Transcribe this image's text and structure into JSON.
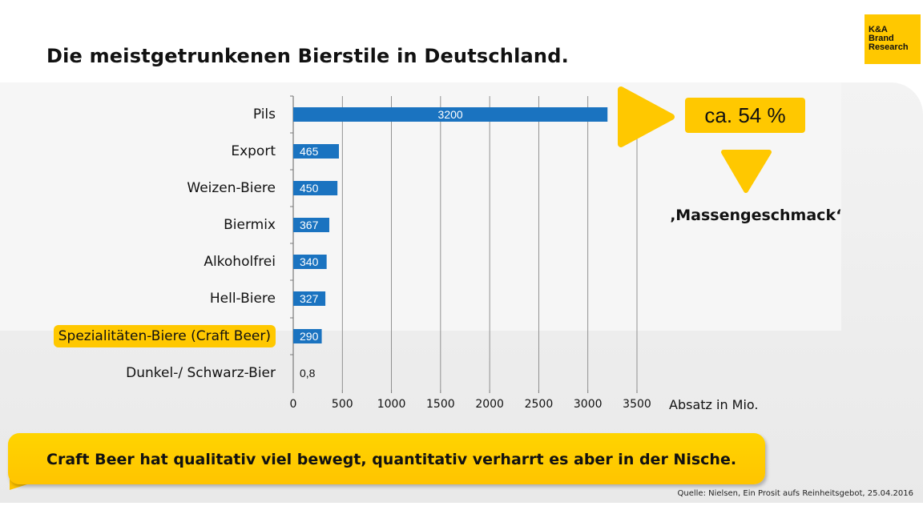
{
  "title": "Die meistgetrunkenen Bierstile in Deutschland.",
  "logo": {
    "line1": "K&A",
    "line2": "Brand",
    "line3": "Research"
  },
  "chart_data": {
    "type": "bar",
    "orientation": "horizontal",
    "categories": [
      "Pils",
      "Export",
      "Weizen-Biere",
      "Biermix",
      "Alkoholfrei",
      "Hell-Biere",
      "Spezialitäten-Biere (Craft Beer)",
      "Dunkel-/ Schwarz-Bier"
    ],
    "values": [
      3200,
      465,
      450,
      367,
      340,
      327,
      290,
      0.8
    ],
    "data_labels": [
      "3200",
      "465",
      "450",
      "367",
      "340",
      "327",
      "290",
      "0,8"
    ],
    "highlighted_category": "Spezialitäten-Biere (Craft Beer)",
    "xlabel": "Absatz in Mio.",
    "xlim": [
      0,
      3500
    ],
    "xticks": [
      0,
      500,
      1000,
      1500,
      2000,
      2500,
      3000,
      3500
    ],
    "xtick_labels": [
      "0",
      "500",
      "1000",
      "1500",
      "2000",
      "2500",
      "3000",
      "3500"
    ],
    "grid": true,
    "colors": {
      "bar": "#1a73c0",
      "highlight": "#ffc800",
      "grid": "#7a7a7a"
    }
  },
  "callout": {
    "percent": "ca. 54 %",
    "text": "‚Massengeschmack‘"
  },
  "banner": {
    "text": "Craft Beer hat qualitativ viel bewegt, quantitativ verharrt es aber in der Nische."
  },
  "source": "Quelle: Nielsen, Ein Prosit aufs Reinheitsgebot, 25.04.2016"
}
